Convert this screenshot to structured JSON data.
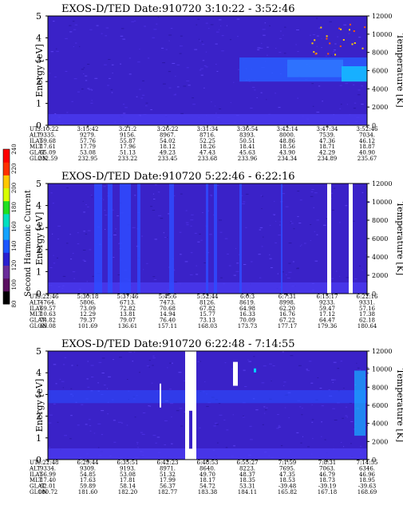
{
  "colorbar": {
    "label": "Second Harmonic Current",
    "ticks": [
      "80",
      "100",
      "120",
      "140",
      "160",
      "180",
      "200",
      "220",
      "240"
    ],
    "colors": [
      "#000000",
      "#5a1060",
      "#6a2c9a",
      "#2a1fd0",
      "#1b56ff",
      "#13a3ff",
      "#00e0c0",
      "#20e020",
      "#d8ff00",
      "#ffc800",
      "#ff3000",
      "#ff0000"
    ]
  },
  "row_labels": [
    "UT",
    "ALT",
    "ILAT",
    "MLT",
    "GLAT",
    "GLON"
  ],
  "chart_data": [
    {
      "type": "heatmap",
      "title": "EXOS-D/TED   Date:910720   3:10:22 - 3:52:46",
      "ylabel": "Energy [eV]",
      "y2label": "Temperature [K]",
      "ylim": [
        0,
        5
      ],
      "y2lim": [
        0,
        12000
      ],
      "yticks": [
        "0",
        "1",
        "2",
        "3",
        "4",
        "5"
      ],
      "y2ticks": [
        "0",
        "2000",
        "4000",
        "6000",
        "8000",
        "10000",
        "12000"
      ],
      "columns": [
        [
          "3:10:22",
          "9335.",
          "59.68",
          "17.61",
          "55.09",
          "232.59"
        ],
        [
          "3:15:42",
          "9279.",
          "57.76",
          "17.79",
          "53.08",
          "232.95"
        ],
        [
          "3:21:2",
          "9156.",
          "55.87",
          "17.96",
          "51.13",
          "233.22"
        ],
        [
          "3:26:22",
          "8967.",
          "54.02",
          "18.12",
          "49.23",
          "233.45"
        ],
        [
          "3:31:34",
          "8716.",
          "52.25",
          "18.26",
          "47.43",
          "233.68"
        ],
        [
          "3:36:54",
          "8393.",
          "50.51",
          "18.41",
          "45.63",
          "233.96"
        ],
        [
          "3:42:14",
          "8000.",
          "48.86",
          "18.56",
          "43.90",
          "234.34"
        ],
        [
          "3:47:34",
          "7539.",
          "47.36",
          "18.71",
          "42.29",
          "234.89"
        ],
        [
          "3:52:46",
          "7034.",
          "46.12",
          "18.87",
          "40.90",
          "235.67"
        ]
      ]
    },
    {
      "type": "heatmap",
      "title": "EXOS-D/TED   Date:910720   5:22:46 - 6:22:16",
      "ylabel": "Energy [eV]",
      "y2label": "Temperature [K]",
      "ylim": [
        0,
        5
      ],
      "y2lim": [
        0,
        12000
      ],
      "yticks": [
        "0",
        "1",
        "2",
        "3",
        "4",
        "5"
      ],
      "y2ticks": [
        "0",
        "2000",
        "4000",
        "6000",
        "8000",
        "10000",
        "12000"
      ],
      "columns": [
        [
          "5:22:46",
          "4764.",
          "69.57",
          "10.63",
          "74.82",
          "69.08"
        ],
        [
          "5:30:18",
          "5806.",
          "73.09",
          "12.29",
          "79.37",
          "101.69"
        ],
        [
          "5:37:46",
          "6713.",
          "72.82",
          "13.81",
          "79.07",
          "136.61"
        ],
        [
          "5:45:6",
          "7473.",
          "70.68",
          "14.94",
          "76.40",
          "157.11"
        ],
        [
          "5:52:44",
          "8126.",
          "67.82",
          "15.77",
          "73.13",
          "168.03"
        ],
        [
          "6:0:3",
          "8619.",
          "64.98",
          "16.33",
          "70.09",
          "173.73"
        ],
        [
          "6:7:31",
          "8998.",
          "62.20",
          "16.76",
          "67.22",
          "177.17"
        ],
        [
          "6:15:17",
          "9233.",
          "59.47",
          "17.12",
          "64.47",
          "179.36"
        ],
        [
          "6:22:16",
          "9331.",
          "57.16",
          "17.38",
          "62.18",
          "180.64"
        ]
      ]
    },
    {
      "type": "heatmap",
      "title": "EXOS-D/TED   Date:910720   6:22:48 - 7:14:55",
      "ylabel": "Energy [eV]",
      "y2label": "Temperature [K]",
      "ylim": [
        0,
        5
      ],
      "y2lim": [
        0,
        12000
      ],
      "yticks": [
        "0",
        "1",
        "2",
        "3",
        "4",
        "5"
      ],
      "y2ticks": [
        "0",
        "2000",
        "4000",
        "6000",
        "8000",
        "10000",
        "12000"
      ],
      "columns": [
        [
          "6:22:48",
          "9334.",
          "56.99",
          "17.40",
          "62.01",
          "180.72"
        ],
        [
          "6:29:44",
          "9309.",
          "54.85",
          "17.63",
          "59.89",
          "181.60"
        ],
        [
          "6:35:51",
          "9193.",
          "53.08",
          "17.81",
          "58.14",
          "182.20"
        ],
        [
          "6:42:23",
          "8971.",
          "51.32",
          "17.99",
          "56.37",
          "182.77"
        ],
        [
          "6:48:53",
          "8640.",
          "49.70",
          "18.17",
          "54.72",
          "183.38"
        ],
        [
          "6:55:27",
          "8223.",
          "48.37",
          "18.35",
          "53.31",
          "184.11"
        ],
        [
          "7:1:59",
          "7695.",
          "47.35",
          "18.53",
          "-39.48",
          "165.82"
        ],
        [
          "7:8:31",
          "7063.",
          "46.79",
          "18.73",
          "-39.19",
          "167.18"
        ],
        [
          "7:14:55",
          "6346.",
          "46.96",
          "18.95",
          "-39.63",
          "168.69"
        ]
      ]
    }
  ]
}
